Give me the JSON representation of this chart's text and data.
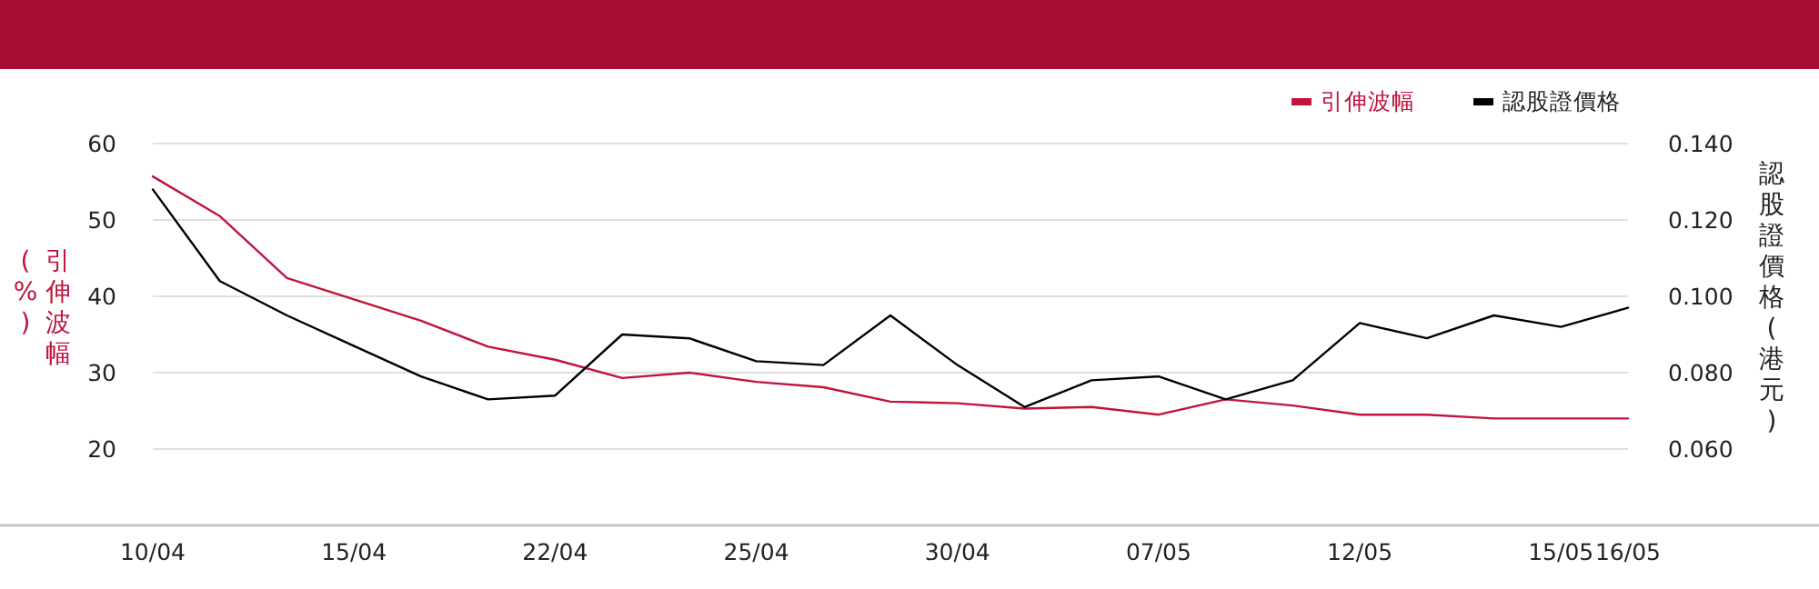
{
  "chart_data": {
    "type": "line",
    "categories": [
      "10/04",
      null,
      null,
      "15/04",
      null,
      null,
      "22/04",
      null,
      null,
      "25/04",
      null,
      null,
      "30/04",
      null,
      null,
      "07/05",
      null,
      null,
      "12/05",
      null,
      null,
      "15/05",
      "16/05"
    ],
    "series": [
      {
        "name": "引伸波幅",
        "color": "#c0143c",
        "values": [
          55.7,
          50.5,
          42.4,
          39.6,
          36.8,
          33.4,
          31.7,
          29.3,
          30.0,
          28.8,
          28.1,
          26.2,
          26.0,
          25.3,
          25.5,
          24.5,
          26.5,
          25.7,
          24.5,
          24.5,
          24.0,
          24.0,
          24.0
        ]
      },
      {
        "name": "認股證價格",
        "color": "#000000",
        "axis": "y2",
        "values": [
          0.128,
          0.104,
          0.095,
          0.087,
          0.079,
          0.073,
          0.074,
          0.09,
          0.089,
          0.083,
          0.082,
          0.095,
          0.082,
          0.071,
          0.078,
          0.079,
          0.073,
          0.078,
          0.093,
          0.089,
          0.095,
          0.092,
          0.097
        ]
      }
    ],
    "ylabel": "引伸波幅(%)",
    "y2label": "認股證價格(港元)",
    "ylim": [
      10,
      60
    ],
    "yticks": [
      20,
      30,
      40,
      50,
      60
    ],
    "y2lim": [
      0.04,
      0.14
    ],
    "y2ticks": [
      {
        "value": 0.06,
        "label": "0.060"
      },
      {
        "value": 0.08,
        "label": "0.080"
      },
      {
        "value": 0.1,
        "label": "0.100"
      },
      {
        "value": 0.12,
        "label": "0.120"
      },
      {
        "value": 0.14,
        "label": "0.140"
      }
    ],
    "grid": "y",
    "legend": "top right",
    "marker": "none",
    "line_style": "solid"
  }
}
